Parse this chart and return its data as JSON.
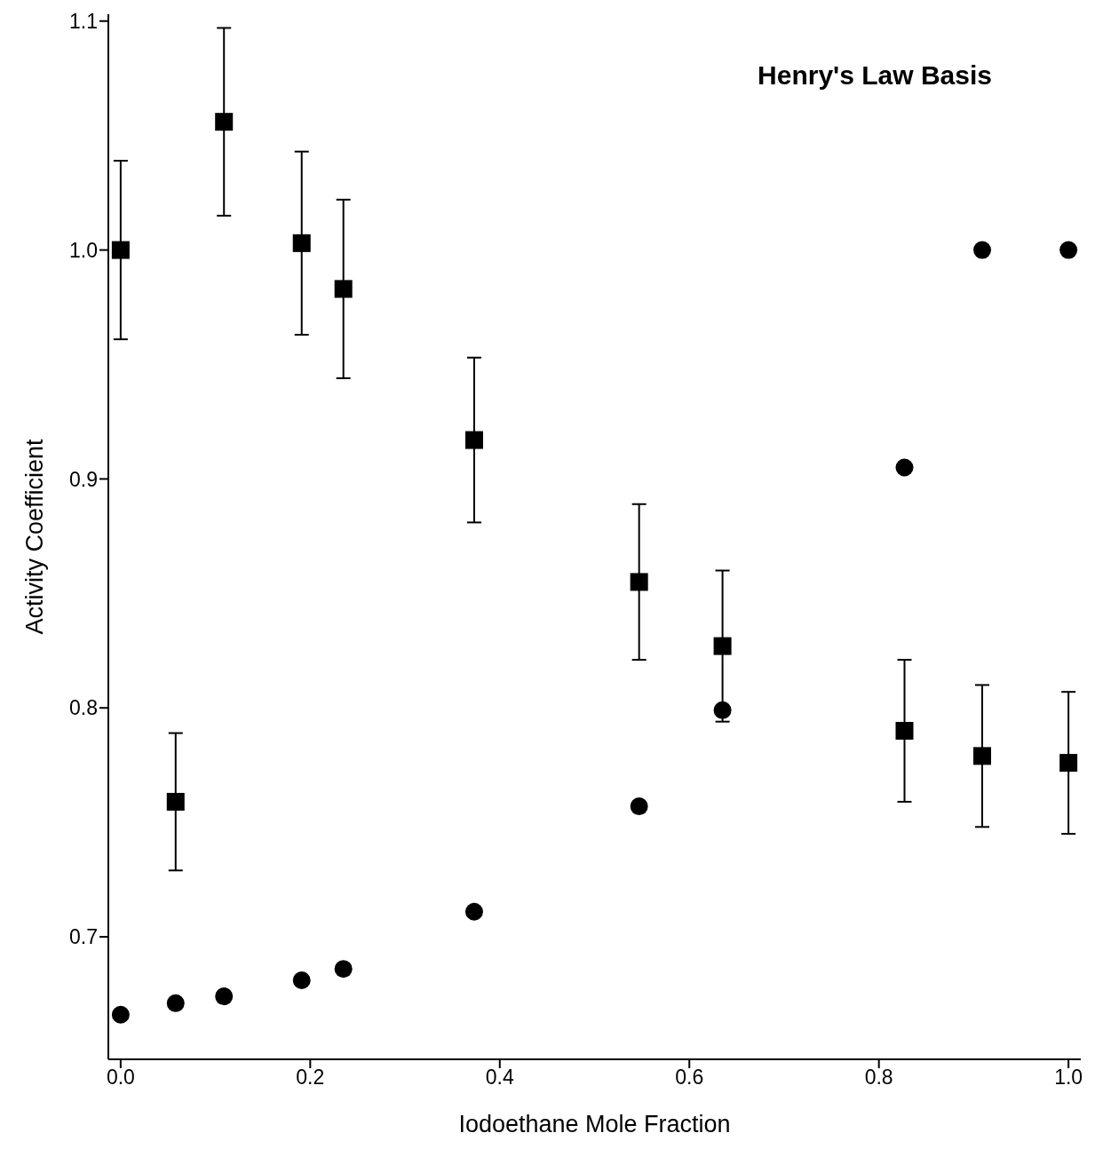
{
  "chart_data": {
    "type": "scatter",
    "title": "Henry's Law Basis",
    "xlabel": "Iodoethane Mole Fraction",
    "ylabel": "Activity Coefficient",
    "xlim": [
      -0.013,
      1.013
    ],
    "ylim": [
      0.6465,
      1.103
    ],
    "xticks": [
      {
        "value": 0,
        "label": "0.0"
      },
      {
        "value": 0.2,
        "label": "0.2"
      },
      {
        "value": 0.4,
        "label": "0.4"
      },
      {
        "value": 0.6,
        "label": "0.6"
      },
      {
        "value": 0.8,
        "label": "0.8"
      },
      {
        "value": 1,
        "label": "1.0"
      }
    ],
    "yticks": [
      {
        "value": 0.7,
        "label": "0.7"
      },
      {
        "value": 0.8,
        "label": "0.8"
      },
      {
        "value": 0.9,
        "label": "0.9"
      },
      {
        "value": 1.0,
        "label": "1.0"
      },
      {
        "value": 1.1,
        "label": "1.1"
      }
    ],
    "grid": false,
    "legend": false,
    "series": [
      {
        "marker": "square",
        "color": "#000000",
        "x": [
          0,
          0.058,
          0.109,
          0.191,
          0.235,
          0.373,
          0.547,
          0.635,
          0.827,
          0.909,
          1.0
        ],
        "values": [
          1.0,
          0.759,
          1.056,
          1.003,
          0.983,
          0.917,
          0.855,
          0.827,
          0.79,
          0.779,
          0.776
        ],
        "errors": [
          0.039,
          0.03,
          0.041,
          0.04,
          0.039,
          0.036,
          0.034,
          0.033,
          0.031,
          0.031,
          0.031
        ]
      },
      {
        "marker": "circle",
        "color": "#000000",
        "x": [
          0,
          0.058,
          0.109,
          0.191,
          0.235,
          0.373,
          0.547,
          0.635,
          0.827,
          0.909,
          1.0
        ],
        "values": [
          0.666,
          0.671,
          0.674,
          0.681,
          0.686,
          0.711,
          0.757,
          0.799,
          0.905,
          1.0,
          1.0
        ]
      }
    ]
  }
}
